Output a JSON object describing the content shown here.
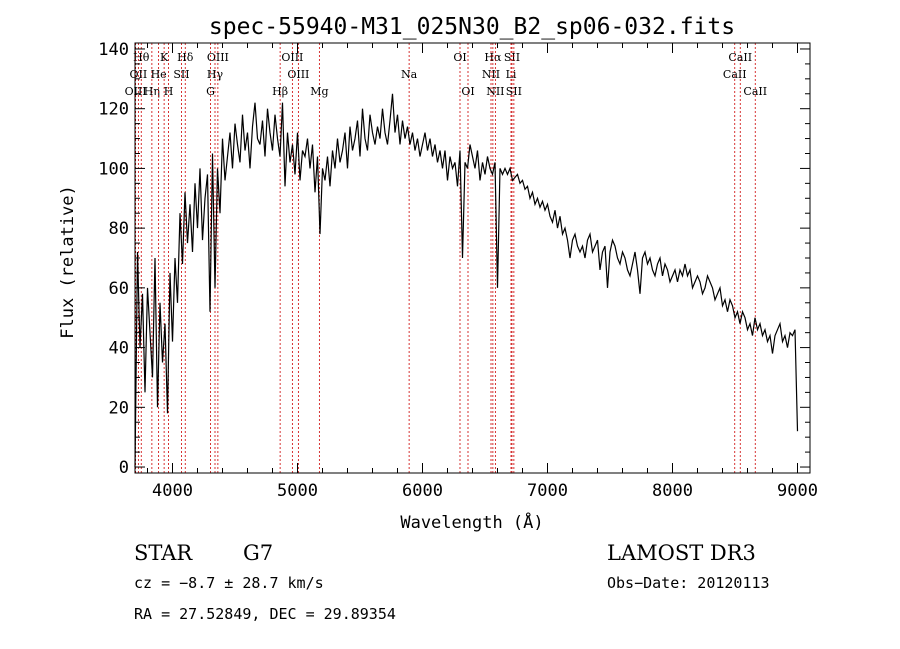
{
  "chart_data": {
    "type": "line",
    "title": "spec-55940-M31_025N30_B2_sp06-032.fits",
    "xlabel": "Wavelength (Å)",
    "ylabel": "Flux (relative)",
    "xlim": [
      3700,
      9100
    ],
    "ylim": [
      -2,
      142
    ],
    "xticks": [
      4000,
      5000,
      6000,
      7000,
      8000,
      9000
    ],
    "yticks": [
      0,
      20,
      40,
      60,
      80,
      100,
      120,
      140
    ],
    "series": [
      {
        "name": "spectrum",
        "x": [
          3700,
          3720,
          3740,
          3760,
          3780,
          3800,
          3820,
          3840,
          3860,
          3880,
          3900,
          3920,
          3940,
          3960,
          3980,
          4000,
          4020,
          4040,
          4060,
          4080,
          4100,
          4120,
          4140,
          4160,
          4180,
          4200,
          4220,
          4240,
          4260,
          4280,
          4300,
          4320,
          4340,
          4360,
          4380,
          4400,
          4420,
          4440,
          4460,
          4480,
          4500,
          4520,
          4540,
          4560,
          4580,
          4600,
          4620,
          4640,
          4660,
          4680,
          4700,
          4720,
          4740,
          4760,
          4780,
          4800,
          4820,
          4840,
          4860,
          4880,
          4900,
          4920,
          4940,
          4960,
          4980,
          5000,
          5020,
          5040,
          5060,
          5080,
          5100,
          5120,
          5140,
          5160,
          5180,
          5200,
          5220,
          5240,
          5260,
          5280,
          5300,
          5320,
          5340,
          5360,
          5380,
          5400,
          5420,
          5440,
          5460,
          5480,
          5500,
          5520,
          5540,
          5560,
          5580,
          5600,
          5620,
          5640,
          5660,
          5680,
          5700,
          5720,
          5740,
          5760,
          5780,
          5800,
          5820,
          5840,
          5860,
          5880,
          5900,
          5920,
          5940,
          5960,
          5980,
          6000,
          6020,
          6040,
          6060,
          6080,
          6100,
          6120,
          6140,
          6160,
          6180,
          6200,
          6220,
          6240,
          6260,
          6280,
          6300,
          6320,
          6340,
          6360,
          6380,
          6400,
          6420,
          6440,
          6460,
          6480,
          6500,
          6520,
          6540,
          6560,
          6580,
          6600,
          6620,
          6640,
          6660,
          6680,
          6700,
          6720,
          6740,
          6760,
          6780,
          6800,
          6820,
          6840,
          6860,
          6880,
          6900,
          6920,
          6940,
          6960,
          6980,
          7000,
          7020,
          7040,
          7060,
          7080,
          7100,
          7120,
          7140,
          7160,
          7180,
          7200,
          7220,
          7240,
          7260,
          7280,
          7300,
          7320,
          7340,
          7360,
          7380,
          7400,
          7420,
          7440,
          7460,
          7480,
          7500,
          7520,
          7540,
          7560,
          7580,
          7600,
          7620,
          7640,
          7660,
          7680,
          7700,
          7720,
          7740,
          7760,
          7780,
          7800,
          7820,
          7840,
          7860,
          7880,
          7900,
          7920,
          7940,
          7960,
          7980,
          8000,
          8020,
          8040,
          8060,
          8080,
          8100,
          8120,
          8140,
          8160,
          8180,
          8200,
          8220,
          8240,
          8260,
          8280,
          8300,
          8320,
          8340,
          8360,
          8380,
          8400,
          8420,
          8440,
          8460,
          8480,
          8500,
          8520,
          8540,
          8560,
          8580,
          8600,
          8620,
          8640,
          8660,
          8680,
          8700,
          8720,
          8740,
          8760,
          8780,
          8800,
          8820,
          8840,
          8860,
          8880,
          8900,
          8920,
          8940,
          8960,
          8980,
          9000
        ],
        "y": [
          0,
          72,
          40,
          58,
          25,
          60,
          45,
          30,
          70,
          20,
          55,
          35,
          48,
          18,
          65,
          42,
          70,
          55,
          85,
          68,
          92,
          75,
          88,
          72,
          95,
          80,
          100,
          76,
          90,
          98,
          52,
          105,
          60,
          100,
          85,
          110,
          96,
          104,
          112,
          100,
          115,
          108,
          102,
          118,
          106,
          112,
          100,
          114,
          122,
          110,
          108,
          116,
          104,
          120,
          112,
          106,
          118,
          110,
          104,
          122,
          94,
          112,
          102,
          108,
          98,
          112,
          96,
          106,
          104,
          110,
          100,
          108,
          92,
          104,
          78,
          100,
          96,
          104,
          94,
          106,
          100,
          110,
          102,
          106,
          112,
          100,
          114,
          106,
          110,
          116,
          104,
          120,
          110,
          106,
          118,
          112,
          108,
          114,
          110,
          120,
          112,
          108,
          116,
          125,
          112,
          118,
          108,
          116,
          110,
          114,
          108,
          112,
          106,
          110,
          104,
          108,
          112,
          106,
          110,
          104,
          108,
          102,
          106,
          100,
          106,
          96,
          104,
          100,
          102,
          94,
          106,
          70,
          102,
          100,
          108,
          104,
          100,
          106,
          96,
          102,
          98,
          104,
          100,
          98,
          102,
          60,
          100,
          98,
          100,
          98,
          100,
          96,
          97,
          98,
          95,
          96,
          93,
          94,
          90,
          92,
          88,
          90,
          87,
          89,
          86,
          88,
          84,
          82,
          86,
          80,
          84,
          78,
          80,
          76,
          70,
          76,
          78,
          74,
          72,
          74,
          70,
          76,
          78,
          72,
          74,
          76,
          66,
          72,
          74,
          60,
          72,
          76,
          74,
          70,
          68,
          72,
          70,
          66,
          64,
          68,
          72,
          66,
          58,
          70,
          72,
          68,
          70,
          66,
          64,
          68,
          70,
          64,
          68,
          66,
          62,
          64,
          66,
          62,
          66,
          64,
          68,
          64,
          66,
          60,
          62,
          64,
          62,
          58,
          60,
          64,
          62,
          60,
          56,
          58,
          60,
          54,
          56,
          52,
          56,
          54,
          50,
          52,
          48,
          52,
          50,
          46,
          48,
          44,
          50,
          46,
          48,
          44,
          46,
          42,
          44,
          38,
          44,
          46,
          48,
          42,
          44,
          40,
          45,
          44,
          46,
          12
        ]
      }
    ],
    "line_markers": [
      {
        "label": "Hθ",
        "x": 3750,
        "row": 1
      },
      {
        "label": "OII",
        "x": 3727,
        "row": 2
      },
      {
        "label": "OIII",
        "x": 3705,
        "row": 3
      },
      {
        "label": "Hη",
        "x": 3835,
        "row": 3
      },
      {
        "label": "K",
        "x": 3933,
        "row": 1
      },
      {
        "label": "He",
        "x": 3889,
        "row": 2
      },
      {
        "label": "H",
        "x": 3968,
        "row": 3
      },
      {
        "label": "Hδ",
        "x": 4102,
        "row": 1
      },
      {
        "label": "SII",
        "x": 4072,
        "row": 2
      },
      {
        "label": "OIII",
        "x": 4363,
        "row": 1
      },
      {
        "label": "Hγ",
        "x": 4340,
        "row": 2
      },
      {
        "label": "G",
        "x": 4304,
        "row": 3
      },
      {
        "label": "OIII",
        "x": 4959,
        "row": 1
      },
      {
        "label": "OIII",
        "x": 5007,
        "row": 2
      },
      {
        "label": "Hβ",
        "x": 4861,
        "row": 3
      },
      {
        "label": "Mg",
        "x": 5175,
        "row": 3
      },
      {
        "label": "Na",
        "x": 5893,
        "row": 2
      },
      {
        "label": "OI",
        "x": 6300,
        "row": 1
      },
      {
        "label": "OI",
        "x": 6364,
        "row": 3
      },
      {
        "label": "Hα",
        "x": 6563,
        "row": 1
      },
      {
        "label": "SII",
        "x": 6716,
        "row": 1
      },
      {
        "label": "NII",
        "x": 6548,
        "row": 2
      },
      {
        "label": "Li",
        "x": 6708,
        "row": 2
      },
      {
        "label": "NII",
        "x": 6583,
        "row": 3
      },
      {
        "label": "SII",
        "x": 6731,
        "row": 3
      },
      {
        "label": "CaII",
        "x": 8542,
        "row": 1
      },
      {
        "label": "CaII",
        "x": 8498,
        "row": 2
      },
      {
        "label": "CaII",
        "x": 8662,
        "row": 3
      }
    ]
  },
  "info": {
    "object_class": "STAR",
    "subclass": "G7",
    "survey": "LAMOST DR3",
    "cz": "cz = −8.7 ± 28.7 km/s",
    "obs_date": "Obs−Date: 20120113",
    "coords": "RA =  27.52849, DEC =  29.89354"
  },
  "colors": {
    "spectrum": "#000000",
    "marker_line": "#cc0000",
    "axes": "#000000"
  }
}
